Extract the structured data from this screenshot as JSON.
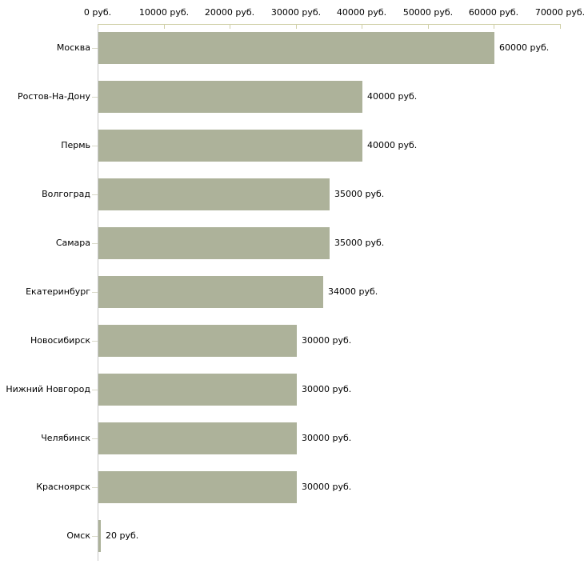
{
  "chart_data": {
    "type": "bar",
    "orientation": "horizontal",
    "title": "",
    "xlabel": "",
    "ylabel": "",
    "unit": "руб.",
    "categories": [
      "Москва",
      "Ростов-На-Дону",
      "Пермь",
      "Волгоград",
      "Самара",
      "Екатеринбург",
      "Новосибирск",
      "Нижний Новгород",
      "Челябинск",
      "Красноярск",
      "Омск"
    ],
    "values": [
      60000,
      40000,
      40000,
      35000,
      35000,
      34000,
      30000,
      30000,
      30000,
      30000,
      20
    ],
    "value_labels": [
      "60000 руб.",
      "40000 руб.",
      "40000 руб.",
      "35000 руб.",
      "35000 руб.",
      "34000 руб.",
      "30000 руб.",
      "30000 руб.",
      "30000 руб.",
      "30000 руб.",
      "20 руб."
    ],
    "x_ticks": [
      0,
      10000,
      20000,
      30000,
      40000,
      50000,
      60000,
      70000
    ],
    "x_tick_labels": [
      "0 руб.",
      "10000 руб.",
      "20000 руб.",
      "30000 руб.",
      "40000 руб.",
      "50000 руб.",
      "60000 руб.",
      "70000 руб."
    ],
    "xlim": [
      0,
      70000
    ],
    "grid": false,
    "legend": false,
    "colors": {
      "bar": "#adb29a",
      "x_axis": "#d0d0a8",
      "y_axis": "#c6c6c6",
      "y_tick": "#d9d9c9",
      "text": "#000000",
      "background": "#ffffff"
    }
  }
}
